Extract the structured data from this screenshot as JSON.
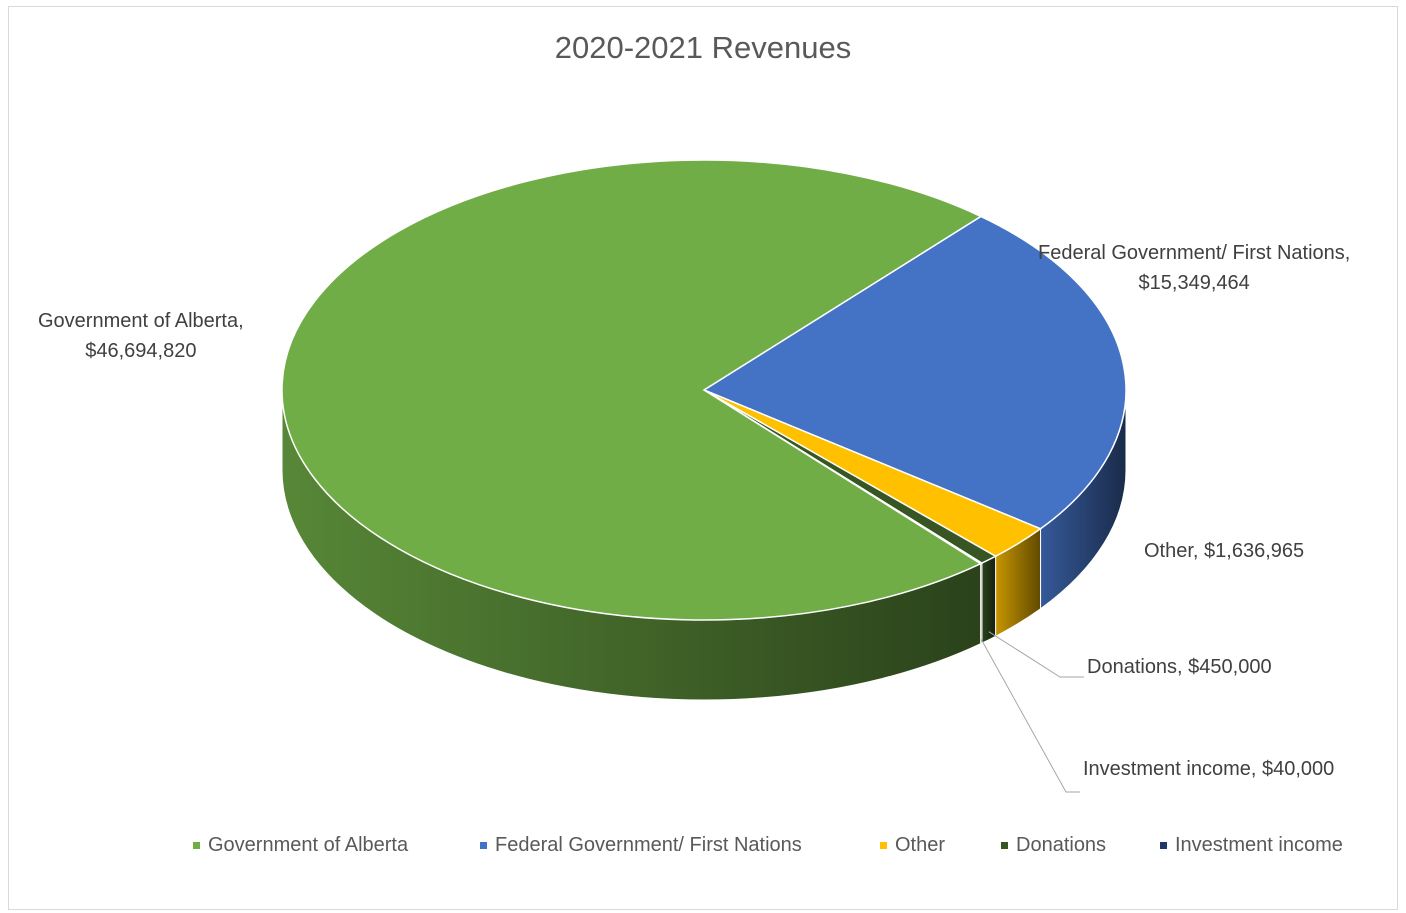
{
  "chart_data": {
    "type": "pie",
    "title": "2020-2021 Revenues",
    "categories": [
      "Government of Alberta",
      "Federal Government/ First Nations",
      "Other",
      "Donations",
      "Investment income"
    ],
    "values": [
      46694820,
      15349464,
      1636965,
      450000,
      40000
    ],
    "value_labels": [
      "$46,694,820",
      "$15,349,464",
      "$1,636,965",
      "$450,000",
      "$40,000"
    ],
    "colors": [
      "#70ad47",
      "#4472c4",
      "#ffc000",
      "#375623",
      "#203864"
    ],
    "data_labels": {
      "gov_alberta": [
        "Government of Alberta,",
        "$46,694,820"
      ],
      "federal": [
        "Federal Government/ First Nations,",
        "$15,349,464"
      ],
      "other": "Other,  $1,636,965",
      "donations": "Donations, $450,000",
      "investment": "Investment income, $40,000"
    },
    "legend_position": "bottom",
    "style": "3d-pie"
  }
}
